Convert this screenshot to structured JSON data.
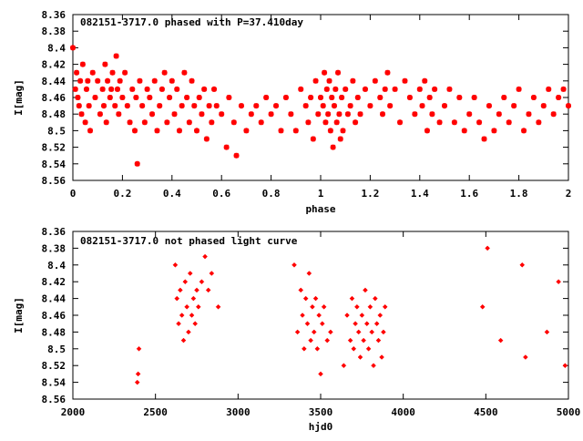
{
  "colors": {
    "points": "#ff0000",
    "frame": "#000000",
    "background": "#ffffff"
  },
  "chart_data": [
    {
      "type": "scatter",
      "title": "082151-3717.0 phased with P=37.410day",
      "xlabel": "phase",
      "ylabel": "I[mag]",
      "xlim": [
        0,
        2
      ],
      "ylim": [
        8.36,
        8.56
      ],
      "y_inverted": true,
      "marker": "asterisk",
      "grid": false,
      "xticks": [
        "0",
        "0.2",
        "0.4",
        "0.6",
        "0.8",
        "1",
        "1.2",
        "1.4",
        "1.6",
        "1.8",
        "2"
      ],
      "yticks": [
        "8.36",
        "8.38",
        "8.4",
        "8.42",
        "8.44",
        "8.46",
        "8.48",
        "8.5",
        "8.52",
        "8.54",
        "8.56"
      ],
      "series": [
        {
          "x": [
            0.0,
            0.01,
            0.015,
            0.02,
            0.025,
            0.03,
            0.035,
            0.04,
            0.05,
            0.055,
            0.06,
            0.065,
            0.07,
            0.08,
            0.09,
            0.1,
            0.11,
            0.12,
            0.125,
            0.13,
            0.135,
            0.14,
            0.15,
            0.155,
            0.16,
            0.17,
            0.175,
            0.18,
            0.185,
            0.19,
            0.2,
            0.21,
            0.22,
            0.23,
            0.24,
            0.25,
            0.255,
            0.26,
            0.27,
            0.28,
            0.29,
            0.3,
            0.31,
            0.32,
            0.33,
            0.34,
            0.35,
            0.36,
            0.37,
            0.38,
            0.39,
            0.4,
            0.41,
            0.42,
            0.43,
            0.44,
            0.45,
            0.46,
            0.47,
            0.48,
            0.49,
            0.5,
            0.51,
            0.52,
            0.53,
            0.54,
            0.55,
            0.56,
            0.57,
            0.58,
            0.6,
            0.62,
            0.63,
            0.65,
            0.66,
            0.68,
            0.7,
            0.72,
            0.74,
            0.76,
            0.78,
            0.8,
            0.82,
            0.84,
            0.86,
            0.88,
            0.9,
            0.92,
            0.94,
            0.95,
            0.96,
            0.97,
            0.98,
            0.99,
            1.0,
            1.01,
            1.015,
            1.02,
            1.025,
            1.03,
            1.035,
            1.04,
            1.045,
            1.05,
            1.055,
            1.06,
            1.065,
            1.07,
            1.075,
            1.08,
            1.085,
            1.09,
            1.1,
            1.11,
            1.12,
            1.13,
            1.14,
            1.15,
            1.16,
            1.18,
            1.2,
            1.22,
            1.24,
            1.25,
            1.26,
            1.27,
            1.28,
            1.3,
            1.32,
            1.34,
            1.36,
            1.38,
            1.4,
            1.41,
            1.42,
            1.43,
            1.44,
            1.45,
            1.46,
            1.48,
            1.5,
            1.52,
            1.54,
            1.56,
            1.58,
            1.6,
            1.62,
            1.64,
            1.66,
            1.68,
            1.7,
            1.72,
            1.74,
            1.76,
            1.78,
            1.8,
            1.82,
            1.84,
            1.86,
            1.88,
            1.9,
            1.92,
            1.94,
            1.96,
            1.98,
            2.0
          ],
          "y": [
            8.4,
            8.45,
            8.43,
            8.46,
            8.47,
            8.44,
            8.48,
            8.42,
            8.49,
            8.45,
            8.44,
            8.47,
            8.5,
            8.43,
            8.46,
            8.44,
            8.48,
            8.45,
            8.47,
            8.42,
            8.49,
            8.44,
            8.46,
            8.45,
            8.43,
            8.47,
            8.41,
            8.45,
            8.48,
            8.44,
            8.46,
            8.43,
            8.47,
            8.49,
            8.45,
            8.5,
            8.46,
            8.54,
            8.44,
            8.47,
            8.49,
            8.45,
            8.46,
            8.48,
            8.44,
            8.5,
            8.47,
            8.45,
            8.43,
            8.49,
            8.46,
            8.44,
            8.48,
            8.45,
            8.5,
            8.47,
            8.43,
            8.46,
            8.49,
            8.44,
            8.47,
            8.5,
            8.46,
            8.48,
            8.45,
            8.51,
            8.47,
            8.49,
            8.45,
            8.47,
            8.48,
            8.52,
            8.46,
            8.49,
            8.53,
            8.47,
            8.5,
            8.48,
            8.47,
            8.49,
            8.46,
            8.48,
            8.47,
            8.5,
            8.46,
            8.48,
            8.5,
            8.45,
            8.47,
            8.49,
            8.46,
            8.51,
            8.44,
            8.48,
            8.46,
            8.47,
            8.43,
            8.49,
            8.45,
            8.48,
            8.44,
            8.5,
            8.46,
            8.52,
            8.47,
            8.45,
            8.49,
            8.43,
            8.48,
            8.51,
            8.46,
            8.5,
            8.45,
            8.48,
            8.47,
            8.44,
            8.49,
            8.46,
            8.48,
            8.45,
            8.47,
            8.44,
            8.46,
            8.48,
            8.45,
            8.43,
            8.47,
            8.45,
            8.49,
            8.44,
            8.46,
            8.48,
            8.45,
            8.47,
            8.44,
            8.5,
            8.46,
            8.48,
            8.45,
            8.49,
            8.47,
            8.45,
            8.49,
            8.46,
            8.5,
            8.48,
            8.46,
            8.49,
            8.51,
            8.47,
            8.5,
            8.48,
            8.46,
            8.49,
            8.47,
            8.45,
            8.5,
            8.48,
            8.46,
            8.49,
            8.47,
            8.45,
            8.48,
            8.46,
            8.45,
            8.47
          ]
        }
      ]
    },
    {
      "type": "scatter",
      "title": "082151-3717.0 not phased light curve",
      "xlabel": "hjd0",
      "ylabel": "I[mag]",
      "xlim": [
        2000,
        5000
      ],
      "ylim": [
        8.36,
        8.56
      ],
      "y_inverted": true,
      "marker": "diamond",
      "grid": false,
      "xticks": [
        "2000",
        "2500",
        "3000",
        "3500",
        "4000",
        "4500",
        "5000"
      ],
      "yticks": [
        "8.36",
        "8.38",
        "8.4",
        "8.42",
        "8.44",
        "8.46",
        "8.48",
        "8.5",
        "8.52",
        "8.54",
        "8.56"
      ],
      "series": [
        {
          "x": [
            2390,
            2395,
            2400,
            2620,
            2630,
            2640,
            2650,
            2660,
            2670,
            2680,
            2690,
            2700,
            2710,
            2720,
            2730,
            2740,
            2750,
            2760,
            2780,
            2800,
            2820,
            2840,
            2880,
            3340,
            3360,
            3380,
            3390,
            3400,
            3410,
            3420,
            3430,
            3440,
            3450,
            3460,
            3470,
            3480,
            3490,
            3500,
            3510,
            3520,
            3540,
            3560,
            3640,
            3660,
            3680,
            3690,
            3700,
            3710,
            3720,
            3730,
            3740,
            3750,
            3760,
            3770,
            3780,
            3790,
            3800,
            3810,
            3820,
            3830,
            3840,
            3850,
            3860,
            3870,
            3880,
            3890,
            4480,
            4510,
            4590,
            4720,
            4740,
            4870,
            4940,
            4980
          ],
          "y": [
            8.54,
            8.53,
            8.5,
            8.4,
            8.44,
            8.47,
            8.43,
            8.46,
            8.49,
            8.42,
            8.45,
            8.48,
            8.41,
            8.46,
            8.44,
            8.47,
            8.43,
            8.45,
            8.42,
            8.39,
            8.43,
            8.41,
            8.45,
            8.4,
            8.48,
            8.43,
            8.46,
            8.5,
            8.44,
            8.47,
            8.41,
            8.49,
            8.45,
            8.48,
            8.44,
            8.5,
            8.46,
            8.53,
            8.47,
            8.45,
            8.49,
            8.48,
            8.52,
            8.46,
            8.49,
            8.44,
            8.5,
            8.47,
            8.45,
            8.48,
            8.51,
            8.46,
            8.49,
            8.43,
            8.47,
            8.5,
            8.45,
            8.48,
            8.52,
            8.44,
            8.47,
            8.49,
            8.46,
            8.51,
            8.48,
            8.45,
            8.45,
            8.38,
            8.49,
            8.4,
            8.51,
            8.48,
            8.42,
            8.52
          ]
        }
      ]
    }
  ]
}
